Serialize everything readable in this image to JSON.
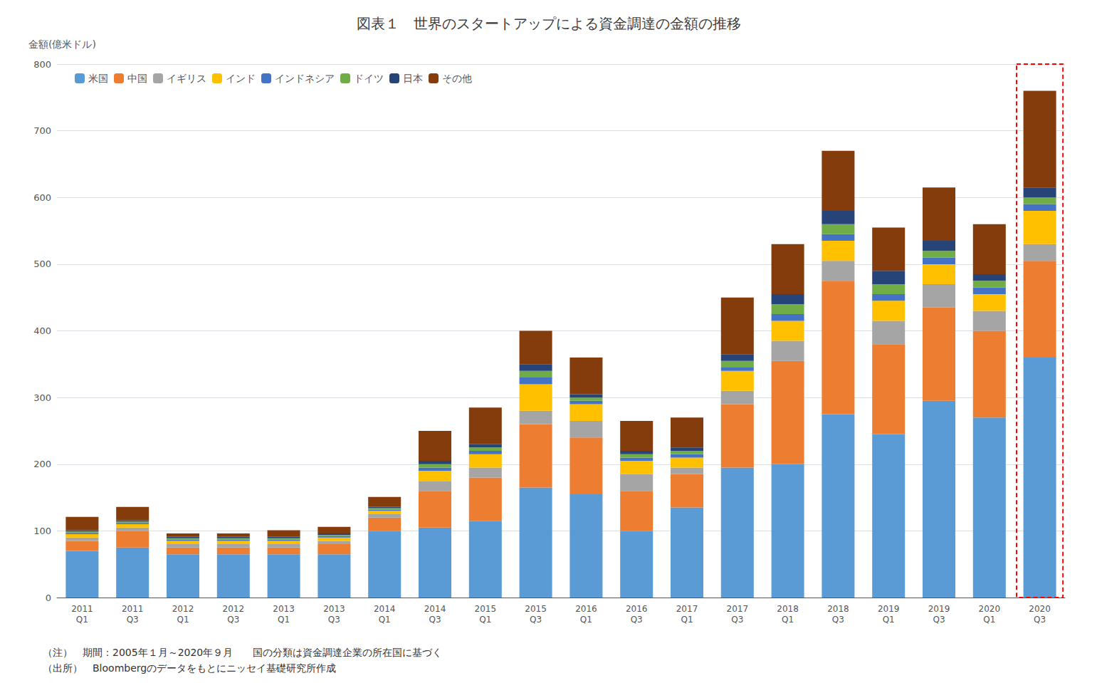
{
  "chart_data": {
    "type": "bar",
    "stacked": true,
    "title": "図表１　世界のスタートアップによる資金調達の金額の推移",
    "ylabel": "金額(億米ドル)",
    "annotations": [
      "（注）　期間：2005年１月～2020年９月　　国の分類は資金調達企業の所在国に基づく",
      "（出所）　Bloombergのデータをもとにニッセイ基礎研究所作成"
    ],
    "categories": [
      "2011\nQ1",
      "2011\nQ3",
      "2012\nQ1",
      "2012\nQ3",
      "2013\nQ1",
      "2013\nQ3",
      "2014\nQ1",
      "2014\nQ3",
      "2015\nQ1",
      "2015\nQ3",
      "2016\nQ1",
      "2016\nQ3",
      "2017\nQ1",
      "2017\nQ3",
      "2018\nQ1",
      "2018\nQ3",
      "2019\nQ1",
      "2019\nQ3",
      "2020\nQ1",
      "2020\nQ3"
    ],
    "series": [
      {
        "name": "米国",
        "color": "#5B9BD5",
        "values": [
          70,
          75,
          65,
          65,
          65,
          65,
          100,
          105,
          115,
          165,
          155,
          100,
          135,
          195,
          200,
          275,
          245,
          295,
          270,
          360
        ]
      },
      {
        "name": "中国",
        "color": "#ED7D31",
        "values": [
          15,
          25,
          10,
          10,
          10,
          15,
          20,
          55,
          65,
          95,
          85,
          60,
          50,
          95,
          155,
          200,
          135,
          140,
          130,
          145
        ]
      },
      {
        "name": "イギリス",
        "color": "#A5A5A5",
        "values": [
          5,
          5,
          5,
          5,
          5,
          5,
          5,
          15,
          15,
          20,
          25,
          25,
          10,
          20,
          30,
          30,
          35,
          35,
          30,
          25
        ]
      },
      {
        "name": "インド",
        "color": "#FFC000",
        "values": [
          5,
          5,
          5,
          5,
          5,
          5,
          5,
          15,
          20,
          40,
          25,
          20,
          15,
          30,
          30,
          30,
          30,
          30,
          25,
          50
        ]
      },
      {
        "name": "インドネシア",
        "color": "#4472C4",
        "values": [
          2,
          2,
          2,
          2,
          2,
          2,
          2,
          5,
          5,
          10,
          5,
          5,
          5,
          5,
          10,
          10,
          10,
          10,
          10,
          10
        ]
      },
      {
        "name": "ドイツ",
        "color": "#70AD47",
        "values": [
          2,
          2,
          2,
          2,
          2,
          2,
          2,
          5,
          5,
          10,
          5,
          5,
          5,
          10,
          15,
          15,
          15,
          10,
          10,
          10
        ]
      },
      {
        "name": "日本",
        "color": "#264478",
        "values": [
          2,
          2,
          2,
          2,
          2,
          2,
          2,
          5,
          5,
          10,
          5,
          5,
          5,
          10,
          15,
          20,
          20,
          15,
          10,
          15
        ]
      },
      {
        "name": "その他",
        "color": "#843C0C",
        "values": [
          20,
          20,
          5,
          5,
          10,
          10,
          15,
          45,
          55,
          50,
          55,
          45,
          45,
          85,
          75,
          90,
          65,
          80,
          75,
          145
        ]
      }
    ],
    "ylim": [
      0,
      800
    ],
    "yticks": [
      0,
      100,
      200,
      300,
      400,
      500,
      600,
      700,
      800
    ],
    "grid": true,
    "legend": "upper left"
  }
}
